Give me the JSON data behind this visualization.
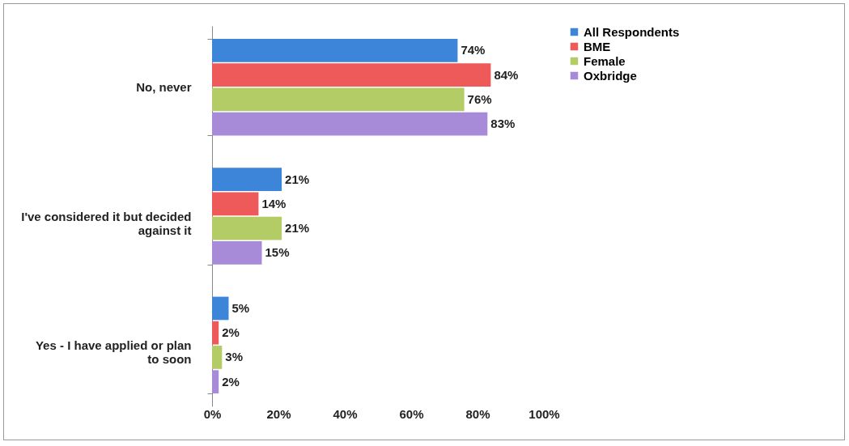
{
  "chart_data": {
    "type": "bar",
    "orientation": "horizontal",
    "categories": [
      "No, never",
      "I've considered it but decided against it",
      "Yes - I have applied or plan to soon"
    ],
    "series": [
      {
        "name": "All Respondents",
        "color": "#3d85d8",
        "values": [
          74,
          21,
          5
        ],
        "value_labels": [
          "74%",
          "21%",
          "5%"
        ]
      },
      {
        "name": "BME",
        "color": "#ee5a5a",
        "values": [
          84,
          14,
          2
        ],
        "value_labels": [
          "84%",
          "14%",
          "2%"
        ]
      },
      {
        "name": "Female",
        "color": "#b4cc66",
        "values": [
          76,
          21,
          3
        ],
        "value_labels": [
          "76%",
          "21%",
          "3%"
        ]
      },
      {
        "name": "Oxbridge",
        "color": "#a78ad8",
        "values": [
          83,
          15,
          2
        ],
        "value_labels": [
          "83%",
          "15%",
          "2%"
        ]
      }
    ],
    "xlim": [
      0,
      100
    ],
    "xticks": [
      {
        "value": 0,
        "label": "0%"
      },
      {
        "value": 20,
        "label": "20%"
      },
      {
        "value": 40,
        "label": "40%"
      },
      {
        "value": 60,
        "label": "60%"
      },
      {
        "value": 80,
        "label": "80%"
      },
      {
        "value": 100,
        "label": "100%"
      }
    ],
    "grid": false,
    "legend": "right"
  }
}
